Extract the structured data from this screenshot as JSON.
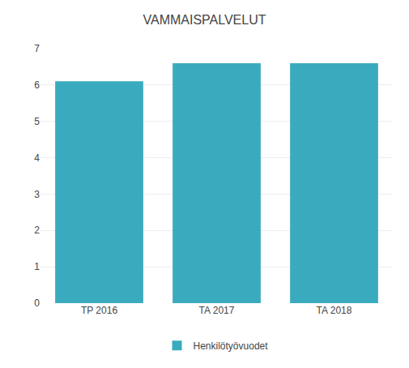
{
  "chart_data": {
    "type": "bar",
    "title": "VAMMAISPALVELUT",
    "categories": [
      "TP 2016",
      "TA 2017",
      "TA 2018"
    ],
    "series": [
      {
        "name": "Henkilötyövuodet",
        "color": "#3AABBF",
        "values": [
          6.1,
          6.6,
          6.6
        ]
      }
    ],
    "ylim": [
      0,
      7
    ],
    "yticks": [
      0,
      1,
      2,
      3,
      4,
      5,
      6,
      7
    ],
    "grid": true,
    "legend": "bottom"
  }
}
